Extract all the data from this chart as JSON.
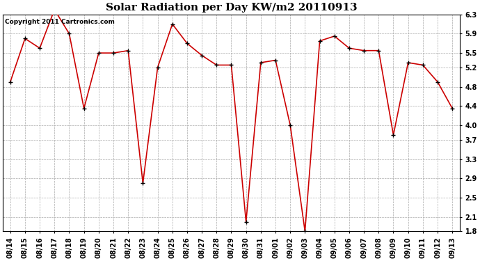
{
  "title": "Solar Radiation per Day KW/m2 20110913",
  "copyright": "Copyright 2011 Cartronics.com",
  "labels": [
    "08/14",
    "08/15",
    "08/16",
    "08/17",
    "08/18",
    "08/19",
    "08/20",
    "08/21",
    "08/22",
    "08/23",
    "08/24",
    "08/25",
    "08/26",
    "08/27",
    "08/28",
    "08/29",
    "08/30",
    "08/31",
    "09/01",
    "09/02",
    "09/03",
    "09/04",
    "09/05",
    "09/06",
    "09/07",
    "09/08",
    "09/09",
    "09/10",
    "09/11",
    "09/12",
    "09/13"
  ],
  "values": [
    4.9,
    5.8,
    5.6,
    6.4,
    5.9,
    4.35,
    5.5,
    5.5,
    5.55,
    2.8,
    5.2,
    6.1,
    5.7,
    5.45,
    5.25,
    5.25,
    2.0,
    5.3,
    5.35,
    4.0,
    1.8,
    5.75,
    5.85,
    5.6,
    5.55,
    5.55,
    3.8,
    5.3,
    5.25,
    4.9,
    4.35
  ],
  "line_color": "#cc0000",
  "marker_color": "#000000",
  "bg_color": "#ffffff",
  "grid_color": "#aaaaaa",
  "ylim": [
    1.8,
    6.3
  ],
  "yticks": [
    6.3,
    5.9,
    5.5,
    5.2,
    4.8,
    4.4,
    4.0,
    3.7,
    3.3,
    2.9,
    2.5,
    2.1,
    1.8
  ],
  "title_fontsize": 11,
  "copyright_fontsize": 6.5,
  "tick_fontsize": 7,
  "marker_size": 4,
  "linewidth": 1.2
}
